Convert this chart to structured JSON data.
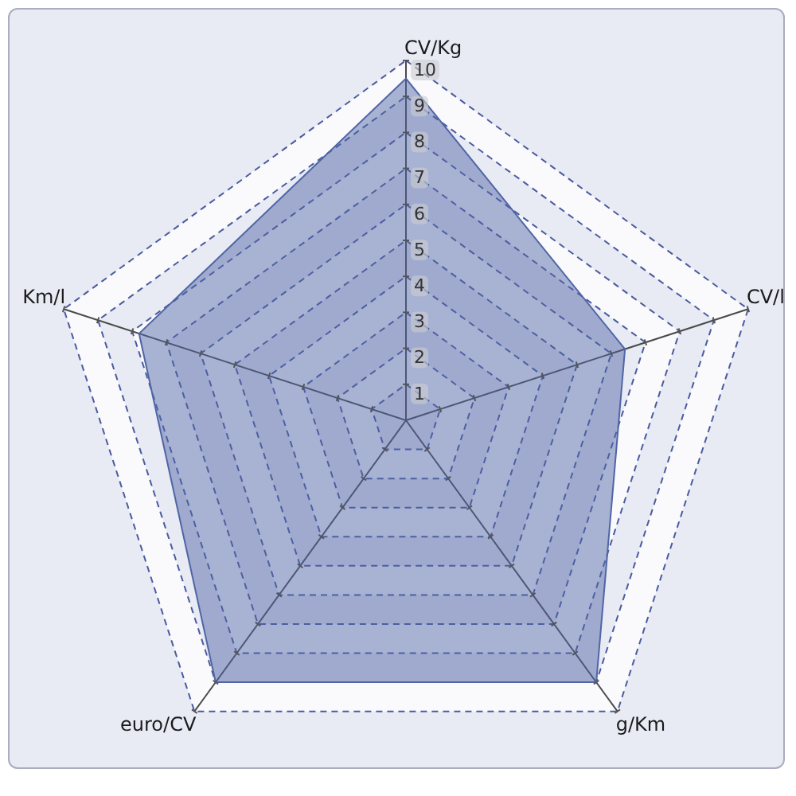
{
  "chart_data": {
    "type": "radar",
    "categories": [
      "CV/Kg",
      "CV/l",
      "g/Km",
      "euro/CV",
      "Km/l"
    ],
    "series": [
      {
        "color": "#4f65a5",
        "values": [
          9.5,
          6.4,
          9,
          9,
          7.8
        ]
      }
    ],
    "ylim": [
      0,
      10
    ],
    "yticks": [
      1,
      2,
      3,
      4,
      5,
      6,
      7,
      8,
      9,
      10
    ],
    "grid": true,
    "marker": "none"
  }
}
